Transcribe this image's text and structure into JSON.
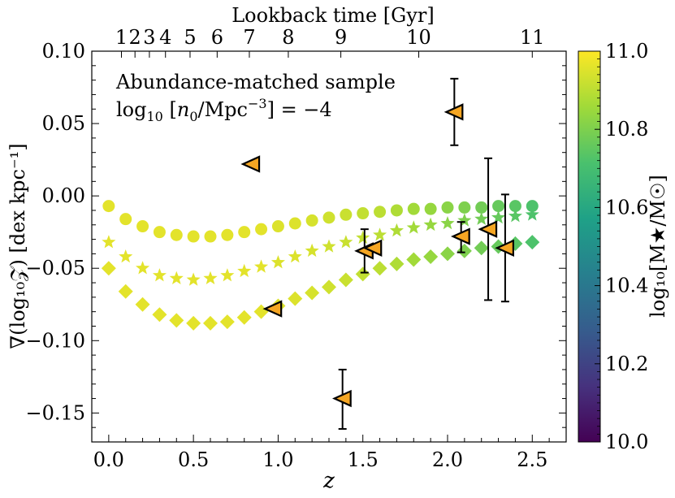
{
  "chart_data": {
    "type": "scatter",
    "title": "",
    "xlabel": "z",
    "ylabel": "∇(log₁₀𝒵) [dex kpc⁻¹]",
    "xlim": [
      -0.1,
      2.7
    ],
    "ylim": [
      -0.17,
      0.1
    ],
    "xticks": [
      0.0,
      0.5,
      1.0,
      1.5,
      2.0,
      2.5
    ],
    "xtick_labels": [
      "0.0",
      "0.5",
      "1.0",
      "1.5",
      "2.0",
      "2.5"
    ],
    "yticks": [
      0.1,
      0.05,
      0.0,
      -0.05,
      -0.1,
      -0.15
    ],
    "ytick_labels": [
      "0.10",
      "0.05",
      "0.00",
      "−0.05",
      "−0.10",
      "−0.15"
    ],
    "top_axis": {
      "label": "Lookback time [Gyr]",
      "ticks": [
        {
          "label": "1",
          "z": 0.075
        },
        {
          "label": "2",
          "z": 0.155
        },
        {
          "label": "3",
          "z": 0.24
        },
        {
          "label": "4",
          "z": 0.335
        },
        {
          "label": "5",
          "z": 0.48
        },
        {
          "label": "6",
          "z": 0.64
        },
        {
          "label": "7",
          "z": 0.83
        },
        {
          "label": "8",
          "z": 1.06
        },
        {
          "label": "9",
          "z": 1.37
        },
        {
          "label": "10",
          "z": 1.83
        },
        {
          "label": "11",
          "z": 2.5
        }
      ]
    },
    "annotation": {
      "line1": "Abundance-matched sample",
      "line2_prefix": "log",
      "line2_sub": "10",
      "line2_main": " [",
      "line2_n": "n",
      "line2_nsub": "0",
      "line2_rest": "/Mpc",
      "line2_sup": "−3",
      "line2_end": "] = −4"
    },
    "colorbar": {
      "label": "log₁₀[M★/M☉]",
      "range": [
        10.0,
        11.0
      ],
      "ticks": [
        10.0,
        10.2,
        10.4,
        10.6,
        10.8,
        11.0
      ],
      "tick_labels": [
        "10.0",
        "10.2",
        "10.4",
        "10.6",
        "10.8",
        "11.0"
      ],
      "stops": [
        "#440154",
        "#46327e",
        "#365c8d",
        "#277f8e",
        "#1fa187",
        "#4ac16d",
        "#a0da39",
        "#fde725"
      ]
    },
    "series": [
      {
        "name": "circles",
        "marker": "circle",
        "x": [
          0.0,
          0.1,
          0.2,
          0.3,
          0.4,
          0.5,
          0.6,
          0.7,
          0.8,
          0.9,
          1.0,
          1.1,
          1.2,
          1.3,
          1.4,
          1.5,
          1.6,
          1.7,
          1.8,
          1.9,
          2.0,
          2.1,
          2.2,
          2.3,
          2.4,
          2.5
        ],
        "y": [
          -0.007,
          -0.016,
          -0.021,
          -0.025,
          -0.027,
          -0.028,
          -0.028,
          -0.027,
          -0.025,
          -0.023,
          -0.021,
          -0.019,
          -0.017,
          -0.015,
          -0.013,
          -0.012,
          -0.011,
          -0.01,
          -0.009,
          -0.009,
          -0.008,
          -0.008,
          -0.008,
          -0.007,
          -0.007,
          -0.007
        ],
        "mass": [
          10.96,
          10.96,
          10.96,
          10.96,
          10.96,
          10.96,
          10.96,
          10.96,
          10.96,
          10.96,
          10.95,
          10.95,
          10.94,
          10.93,
          10.92,
          10.91,
          10.9,
          10.88,
          10.86,
          10.84,
          10.82,
          10.8,
          10.78,
          10.76,
          10.74,
          10.72
        ]
      },
      {
        "name": "stars",
        "marker": "star",
        "x": [
          0.0,
          0.1,
          0.2,
          0.3,
          0.4,
          0.5,
          0.6,
          0.7,
          0.8,
          0.9,
          1.0,
          1.1,
          1.2,
          1.3,
          1.4,
          1.5,
          1.6,
          1.7,
          1.8,
          1.9,
          2.0,
          2.1,
          2.2,
          2.3,
          2.4,
          2.5
        ],
        "y": [
          -0.032,
          -0.042,
          -0.05,
          -0.055,
          -0.057,
          -0.058,
          -0.057,
          -0.055,
          -0.052,
          -0.049,
          -0.046,
          -0.042,
          -0.038,
          -0.035,
          -0.032,
          -0.029,
          -0.027,
          -0.024,
          -0.022,
          -0.02,
          -0.019,
          -0.017,
          -0.016,
          -0.015,
          -0.014,
          -0.013
        ],
        "mass": [
          10.96,
          10.96,
          10.96,
          10.96,
          10.96,
          10.96,
          10.96,
          10.96,
          10.96,
          10.96,
          10.95,
          10.95,
          10.94,
          10.93,
          10.92,
          10.91,
          10.9,
          10.88,
          10.86,
          10.84,
          10.82,
          10.8,
          10.78,
          10.76,
          10.74,
          10.72
        ]
      },
      {
        "name": "diamonds",
        "marker": "diamond",
        "x": [
          0.0,
          0.1,
          0.2,
          0.3,
          0.4,
          0.5,
          0.6,
          0.7,
          0.8,
          0.9,
          1.0,
          1.1,
          1.2,
          1.3,
          1.4,
          1.5,
          1.6,
          1.7,
          1.8,
          1.9,
          2.0,
          2.1,
          2.2,
          2.3,
          2.4,
          2.5
        ],
        "y": [
          -0.05,
          -0.066,
          -0.075,
          -0.082,
          -0.086,
          -0.088,
          -0.088,
          -0.087,
          -0.084,
          -0.08,
          -0.076,
          -0.071,
          -0.067,
          -0.063,
          -0.058,
          -0.054,
          -0.05,
          -0.047,
          -0.044,
          -0.042,
          -0.04,
          -0.038,
          -0.036,
          -0.035,
          -0.033,
          -0.032
        ],
        "mass": [
          10.96,
          10.96,
          10.96,
          10.96,
          10.96,
          10.96,
          10.96,
          10.96,
          10.96,
          10.96,
          10.95,
          10.95,
          10.94,
          10.93,
          10.92,
          10.91,
          10.9,
          10.88,
          10.86,
          10.84,
          10.82,
          10.8,
          10.78,
          10.76,
          10.74,
          10.72
        ]
      }
    ],
    "observations": {
      "name": "observed gradients",
      "marker": "left-triangle",
      "color": "#f5a623",
      "edge": "#000000",
      "points": [
        {
          "x": 0.84,
          "y": 0.022
        },
        {
          "x": 0.97,
          "y": -0.078
        },
        {
          "x": 1.38,
          "y": -0.14,
          "err_lo": 0.021,
          "err_hi": 0.02
        },
        {
          "x": 1.51,
          "y": -0.038,
          "err_lo": 0.015,
          "err_hi": 0.015
        },
        {
          "x": 1.56,
          "y": -0.036
        },
        {
          "x": 2.04,
          "y": 0.058,
          "err_lo": 0.023,
          "err_hi": 0.023
        },
        {
          "x": 2.08,
          "y": -0.028,
          "err_lo": 0.011,
          "err_hi": 0.01
        },
        {
          "x": 2.24,
          "y": -0.023,
          "err_lo": 0.049,
          "err_hi": 0.049
        },
        {
          "x": 2.34,
          "y": -0.036,
          "err_lo": 0.037,
          "err_hi": 0.037
        }
      ]
    }
  }
}
